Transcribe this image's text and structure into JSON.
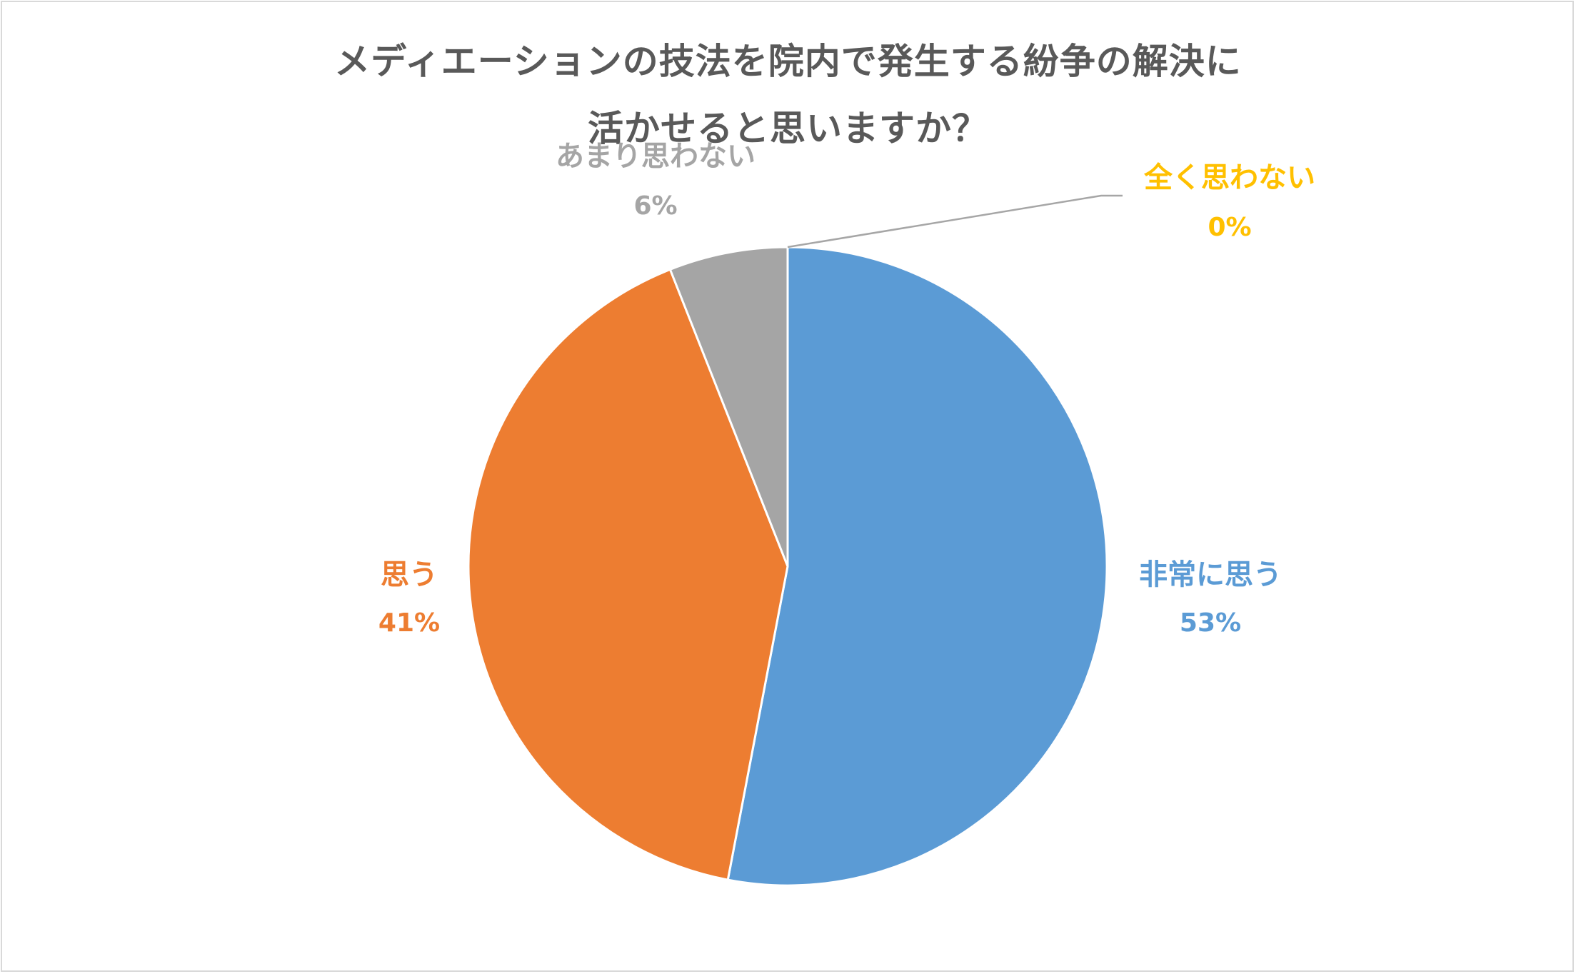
{
  "chart_data": {
    "type": "pie",
    "title_lines": [
      "メディエーションの技法を院内で発生する紛争の解決に",
      "活かせると思いますか？"
    ],
    "categories": [
      "非常に思う",
      "思う",
      "あまり思わない",
      "全く思わない"
    ],
    "values": [
      53,
      41,
      6,
      0
    ],
    "value_labels": [
      "53%",
      "41%",
      "6%",
      "0%"
    ],
    "colors": [
      "#5b9bd5",
      "#ed7d31",
      "#a5a5a5",
      "#ffc000"
    ],
    "start_angle_deg": 0,
    "direction": "clockwise",
    "legend": "none"
  }
}
